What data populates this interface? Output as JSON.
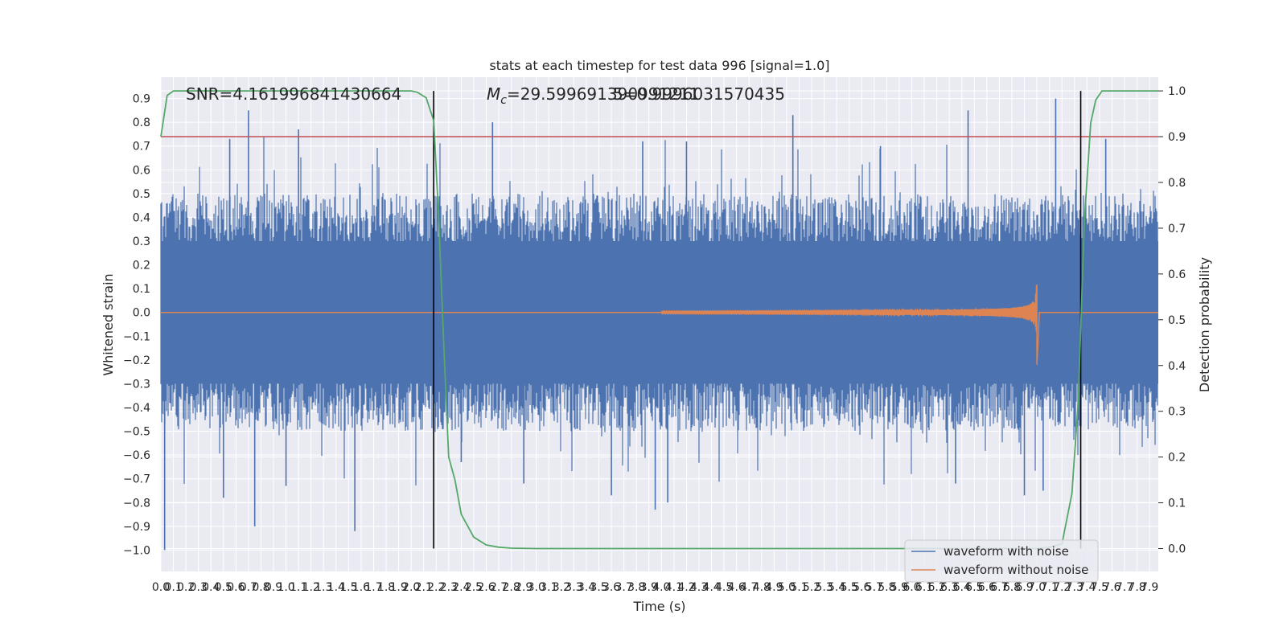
{
  "chart_data": {
    "type": "line",
    "title": "stats at each timestep for test data 996 [signal=1.0]",
    "xlabel": "Time (s)",
    "ylabel": "Whitened strain",
    "y2label": "Detection probability",
    "xlim": [
      0.0,
      7.97
    ],
    "ylim": [
      -1.09,
      0.99
    ],
    "y2lim": [
      -0.05,
      1.03
    ],
    "grid": true,
    "x_ticks": [
      0.0,
      0.1,
      0.2,
      0.3,
      0.4,
      0.5,
      0.6,
      0.7,
      0.8,
      0.9,
      1.0,
      1.1,
      1.2,
      1.3,
      1.4,
      1.5,
      1.6,
      1.7,
      1.8,
      1.9,
      2.0,
      2.1,
      2.2,
      2.3,
      2.4,
      2.5,
      2.6,
      2.7,
      2.8,
      2.9,
      3.0,
      3.1,
      3.2,
      3.3,
      3.4,
      3.5,
      3.6,
      3.7,
      3.8,
      3.9,
      4.0,
      4.1,
      4.2,
      4.3,
      4.4,
      4.5,
      4.6,
      4.7,
      4.8,
      4.9,
      5.0,
      5.1,
      5.2,
      5.3,
      5.4,
      5.5,
      5.6,
      5.7,
      5.8,
      5.9,
      6.0,
      6.1,
      6.2,
      6.3,
      6.4,
      6.5,
      6.6,
      6.7,
      6.8,
      6.9,
      7.0,
      7.1,
      7.2,
      7.3,
      7.4,
      7.5,
      7.6,
      7.7,
      7.8,
      7.9
    ],
    "x_tick_labels": [
      "0.0",
      "0.1",
      "0.2",
      "0.3",
      "0.4",
      "0.5",
      "0.6",
      "0.7",
      "0.8",
      "0.9",
      "1.0",
      "1.1",
      "1.2",
      "1.3",
      "1.4",
      "1.5",
      "1.6",
      "1.7",
      "1.8",
      "1.9",
      "2.0",
      "2.1",
      "2.2",
      "2.3",
      "2.4",
      "2.5",
      "2.6",
      "2.7",
      "2.8",
      "2.9",
      "3.0",
      "3.1",
      "3.2",
      "3.3",
      "3.4",
      "3.5",
      "3.6",
      "3.7",
      "3.8",
      "3.9",
      "4.0",
      "4.1",
      "4.2",
      "4.3",
      "4.4",
      "4.5",
      "4.6",
      "4.7",
      "4.8",
      "4.9",
      "5.0",
      "5.1",
      "5.2",
      "5.3",
      "5.4",
      "5.5",
      "5.6",
      "5.7",
      "5.8",
      "5.9",
      "6.0",
      "6.1",
      "6.2",
      "6.3",
      "6.4",
      "6.5",
      "6.6",
      "6.7",
      "6.8",
      "6.9",
      "7.0",
      "7.1",
      "7.2",
      "7.3",
      "7.4",
      "7.5",
      "7.6",
      "7.7",
      "7.8",
      "7.9"
    ],
    "y_ticks": [
      0.9,
      0.8,
      0.7,
      0.6,
      0.5,
      0.4,
      0.3,
      0.2,
      0.1,
      0.0,
      -0.1,
      -0.2,
      -0.3,
      -0.4,
      -0.5,
      -0.6,
      -0.7,
      -0.8,
      -0.9,
      -1.0
    ],
    "y_tick_labels": [
      "0.9",
      "0.8",
      "0.7",
      "0.6",
      "0.5",
      "0.4",
      "0.3",
      "0.2",
      "0.1",
      "0.0",
      "−0.1",
      "−0.2",
      "−0.3",
      "−0.4",
      "−0.5",
      "−0.6",
      "−0.7",
      "−0.8",
      "−0.9",
      "−1.0"
    ],
    "y2_ticks": [
      1.0,
      0.9,
      0.8,
      0.7,
      0.6,
      0.5,
      0.4,
      0.3,
      0.2,
      0.1,
      0.0
    ],
    "y2_tick_labels": [
      "1.0",
      "0.9",
      "0.8",
      "0.7",
      "0.6",
      "0.5",
      "0.4",
      "0.3",
      "0.2",
      "0.1",
      "0.0"
    ],
    "annotations": {
      "snr": "SNR=4.161996841430664",
      "mc_symbol": "M",
      "mc_sub": "c",
      "mc_value": "=29.599691390991211",
      "overlap": "5=0.9996031570435"
    },
    "threshold": {
      "y2": 0.9,
      "color": "#c44e52"
    },
    "vlines": [
      {
        "x": 2.18,
        "color": "#000000"
      },
      {
        "x": 7.35,
        "color": "#000000"
      }
    ],
    "series": [
      {
        "name": "waveform with noise",
        "color": "#4c72b0",
        "axis": "left",
        "envelope_typical": 0.3,
        "envelope_seed": 996,
        "spikes": [
          {
            "x": 0.03,
            "y": -1.0
          },
          {
            "x": 0.55,
            "y": 0.73
          },
          {
            "x": 0.7,
            "y": 0.85
          },
          {
            "x": 0.75,
            "y": -0.9
          },
          {
            "x": 1.1,
            "y": 0.77
          },
          {
            "x": 1.0,
            "y": -0.73
          },
          {
            "x": 0.5,
            "y": -0.78
          },
          {
            "x": 1.55,
            "y": -0.92
          },
          {
            "x": 2.65,
            "y": 0.8
          },
          {
            "x": 3.85,
            "y": 0.72
          },
          {
            "x": 3.95,
            "y": -0.83
          },
          {
            "x": 4.05,
            "y": -0.8
          },
          {
            "x": 4.2,
            "y": 0.72
          },
          {
            "x": 5.05,
            "y": 0.83
          },
          {
            "x": 5.75,
            "y": 0.7
          },
          {
            "x": 6.45,
            "y": 0.85
          },
          {
            "x": 6.35,
            "y": -0.72
          },
          {
            "x": 7.05,
            "y": -0.75
          },
          {
            "x": 7.15,
            "y": 0.9
          },
          {
            "x": 7.55,
            "y": 0.73
          },
          {
            "x": 2.4,
            "y": -0.63
          },
          {
            "x": 2.9,
            "y": -0.72
          },
          {
            "x": 3.6,
            "y": -0.77
          },
          {
            "x": 6.9,
            "y": -0.77
          }
        ]
      },
      {
        "name": "waveform without noise",
        "color": "#dd8452",
        "axis": "left",
        "chirp": {
          "start": 4.0,
          "merger": 7.0,
          "peak_amplitude": 0.2,
          "min_amplitude": -0.22,
          "ringdown_end": 7.02
        }
      },
      {
        "name": "detection probability",
        "color": "#55a868",
        "axis": "right",
        "x": [
          0.0,
          0.05,
          0.1,
          0.2,
          0.5,
          1.0,
          1.5,
          2.0,
          2.05,
          2.12,
          2.18,
          2.22,
          2.26,
          2.3,
          2.35,
          2.4,
          2.5,
          2.6,
          2.7,
          2.8,
          3.0,
          4.0,
          5.0,
          6.0,
          7.0,
          7.1,
          7.2,
          7.28,
          7.33,
          7.38,
          7.43,
          7.47,
          7.52,
          7.6,
          7.97
        ],
        "y": [
          0.9,
          0.99,
          1.0,
          1.0,
          1.0,
          1.0,
          1.0,
          1.0,
          0.997,
          0.985,
          0.935,
          0.72,
          0.45,
          0.2,
          0.15,
          0.075,
          0.025,
          0.008,
          0.003,
          0.001,
          0.0,
          0.0,
          0.0,
          0.0,
          0.0,
          0.003,
          0.01,
          0.12,
          0.32,
          0.72,
          0.93,
          0.98,
          1.0,
          1.0,
          1.0
        ]
      }
    ],
    "legend": {
      "placement": "lower-right",
      "entries": [
        {
          "label": "waveform with noise",
          "color": "#4c72b0"
        },
        {
          "label": "waveform without noise",
          "color": "#dd8452"
        }
      ]
    }
  }
}
